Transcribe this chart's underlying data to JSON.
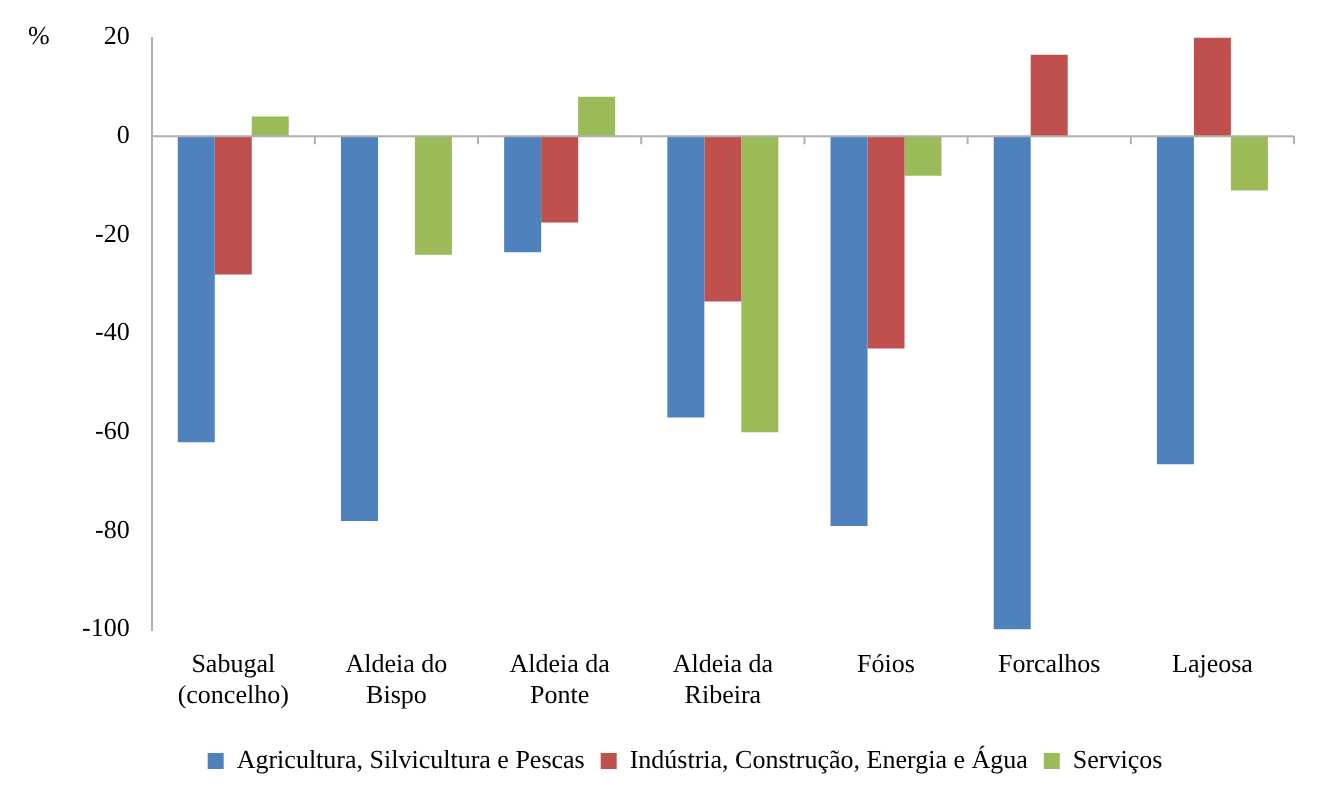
{
  "chart_data": {
    "type": "bar",
    "ylabel": "%",
    "categories": [
      "Sabugal (concelho)",
      "Aldeia do Bispo",
      "Aldeia da Ponte",
      "Aldeia da Ribeira",
      "Fóios",
      "Forcalhos",
      "Lajeosa"
    ],
    "series": [
      {
        "name": "Agricultura, Silvicultura e Pescas",
        "color": "#4f81bd",
        "values": [
          -62,
          -78,
          -23.5,
          -57,
          -79,
          -100,
          -66.5
        ]
      },
      {
        "name": "Indústria, Construção, Energia e Água",
        "color": "#c0504d",
        "values": [
          -28,
          null,
          -17.5,
          -33.5,
          -43,
          16.5,
          20
        ]
      },
      {
        "name": "Serviços",
        "color": "#9bbb59",
        "values": [
          4,
          -24,
          8,
          -60,
          -8,
          null,
          -11
        ]
      }
    ],
    "ylim": [
      -100,
      20
    ],
    "yticks": [
      -100,
      -80,
      -60,
      -40,
      -20,
      0,
      20
    ],
    "legend": "bottom"
  }
}
